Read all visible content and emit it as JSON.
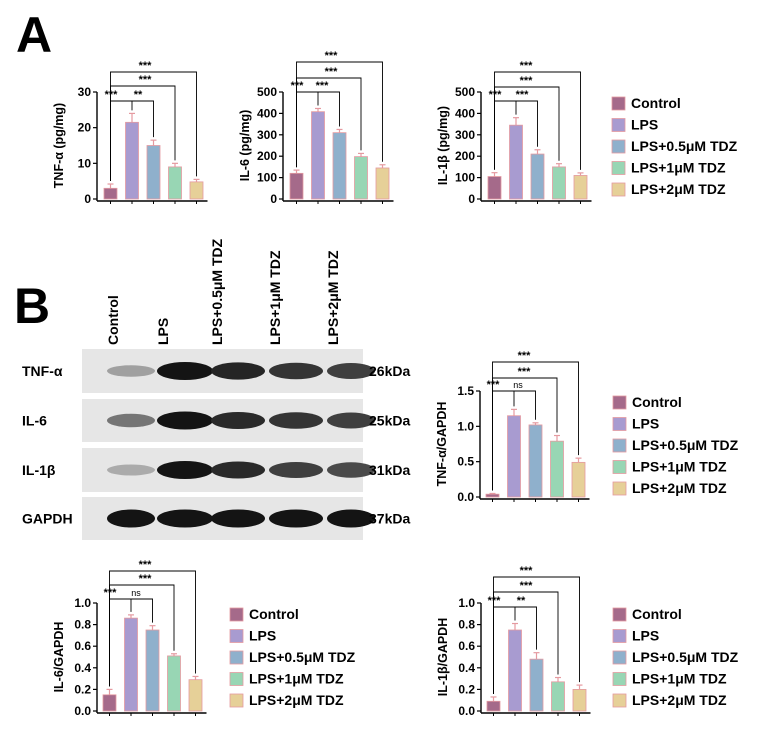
{
  "panels": {
    "A": "A",
    "B": "B"
  },
  "colors": {
    "control": "#a56a8a",
    "lps": "#a89bd0",
    "tdz05": "#8fb0cc",
    "tdz1": "#98d6b4",
    "tdz2": "#e6d098",
    "error": "#e59aa0",
    "axis": "#000000"
  },
  "legend": {
    "items": [
      "Control",
      "LPS",
      "LPS+0.5μM TDZ",
      "LPS+1μM TDZ",
      "LPS+2μM TDZ"
    ]
  },
  "western_blot": {
    "lanes": [
      "Control",
      "LPS",
      "LPS+0.5μM TDZ",
      "LPS+1μM TDZ",
      "LPS+2μM TDZ"
    ],
    "rows": [
      {
        "protein": "TNF-α",
        "size": "26kDa",
        "intensity": [
          0.35,
          1.0,
          0.92,
          0.85,
          0.8
        ]
      },
      {
        "protein": "IL-6",
        "size": "25kDa",
        "intensity": [
          0.55,
          1.0,
          0.9,
          0.85,
          0.8
        ]
      },
      {
        "protein": "IL-1β",
        "size": "31kDa",
        "intensity": [
          0.3,
          1.0,
          0.9,
          0.8,
          0.75
        ]
      },
      {
        "protein": "GAPDH",
        "size": "37kDa",
        "intensity": [
          1.0,
          1.0,
          1.0,
          1.0,
          1.0
        ]
      }
    ]
  },
  "chart_data": [
    {
      "type": "bar",
      "ylabel": "TNF-α (pg/mg)",
      "ylim": [
        0,
        30
      ],
      "yticks": [
        0,
        10,
        20,
        30
      ],
      "categories": [
        "Control",
        "LPS",
        "LPS+0.5μM TDZ",
        "LPS+1μM TDZ",
        "LPS+2μM TDZ"
      ],
      "values": [
        3.0,
        21.5,
        15.0,
        9.0,
        4.8
      ],
      "errors": [
        1.2,
        2.5,
        1.5,
        1.0,
        0.7
      ],
      "significance": [
        "***",
        "**",
        "***",
        "***"
      ]
    },
    {
      "type": "bar",
      "ylabel": "IL-6 (pg/mg)",
      "ylim": [
        0,
        500
      ],
      "yticks": [
        0,
        100,
        200,
        300,
        400,
        500
      ],
      "categories": [
        "Control",
        "LPS",
        "LPS+0.5μM TDZ",
        "LPS+1μM TDZ",
        "LPS+2μM TDZ"
      ],
      "values": [
        120,
        408,
        310,
        198,
        145
      ],
      "errors": [
        15,
        15,
        15,
        15,
        15
      ],
      "significance": [
        "***",
        "***",
        "***",
        "***"
      ]
    },
    {
      "type": "bar",
      "ylabel": "IL-1β (pg/mg)",
      "ylim": [
        0,
        500
      ],
      "yticks": [
        0,
        100,
        200,
        300,
        400,
        500
      ],
      "categories": [
        "Control",
        "LPS",
        "LPS+0.5μM TDZ",
        "LPS+1μM TDZ",
        "LPS+2μM TDZ"
      ],
      "values": [
        105,
        345,
        210,
        150,
        110
      ],
      "errors": [
        18,
        35,
        20,
        15,
        12
      ],
      "significance": [
        "***",
        "***",
        "***",
        "***"
      ]
    },
    {
      "type": "bar",
      "ylabel": "TNF-α/GAPDH",
      "ylim": [
        0,
        1.5
      ],
      "yticks": [
        0.0,
        0.5,
        1.0,
        1.5
      ],
      "tick_decimals": 1,
      "categories": [
        "Control",
        "LPS",
        "LPS+0.5μM TDZ",
        "LPS+1μM TDZ",
        "LPS+2μM TDZ"
      ],
      "values": [
        0.04,
        1.15,
        1.02,
        0.79,
        0.49
      ],
      "errors": [
        0.01,
        0.09,
        0.03,
        0.08,
        0.06
      ],
      "significance": [
        "***",
        "ns",
        "***",
        "***"
      ]
    },
    {
      "type": "bar",
      "ylabel": "IL-6/GAPDH",
      "ylim": [
        0,
        1.0
      ],
      "yticks": [
        0.0,
        0.2,
        0.4,
        0.6,
        0.8,
        1.0
      ],
      "tick_decimals": 1,
      "categories": [
        "Control",
        "LPS",
        "LPS+0.5μM TDZ",
        "LPS+1μM TDZ",
        "LPS+2μM TDZ"
      ],
      "values": [
        0.15,
        0.86,
        0.75,
        0.51,
        0.29
      ],
      "errors": [
        0.05,
        0.03,
        0.04,
        0.02,
        0.03
      ],
      "significance": [
        "***",
        "ns",
        "***",
        "***"
      ]
    },
    {
      "type": "bar",
      "ylabel": "IL-1β/GAPDH",
      "ylim": [
        0,
        1.0
      ],
      "yticks": [
        0.0,
        0.2,
        0.4,
        0.6,
        0.8,
        1.0
      ],
      "tick_decimals": 1,
      "categories": [
        "Control",
        "LPS",
        "LPS+0.5μM TDZ",
        "LPS+1μM TDZ",
        "LPS+2μM TDZ"
      ],
      "values": [
        0.09,
        0.75,
        0.48,
        0.27,
        0.2
      ],
      "errors": [
        0.04,
        0.06,
        0.06,
        0.04,
        0.04
      ],
      "significance": [
        "***",
        "**",
        "***",
        "***"
      ]
    }
  ]
}
